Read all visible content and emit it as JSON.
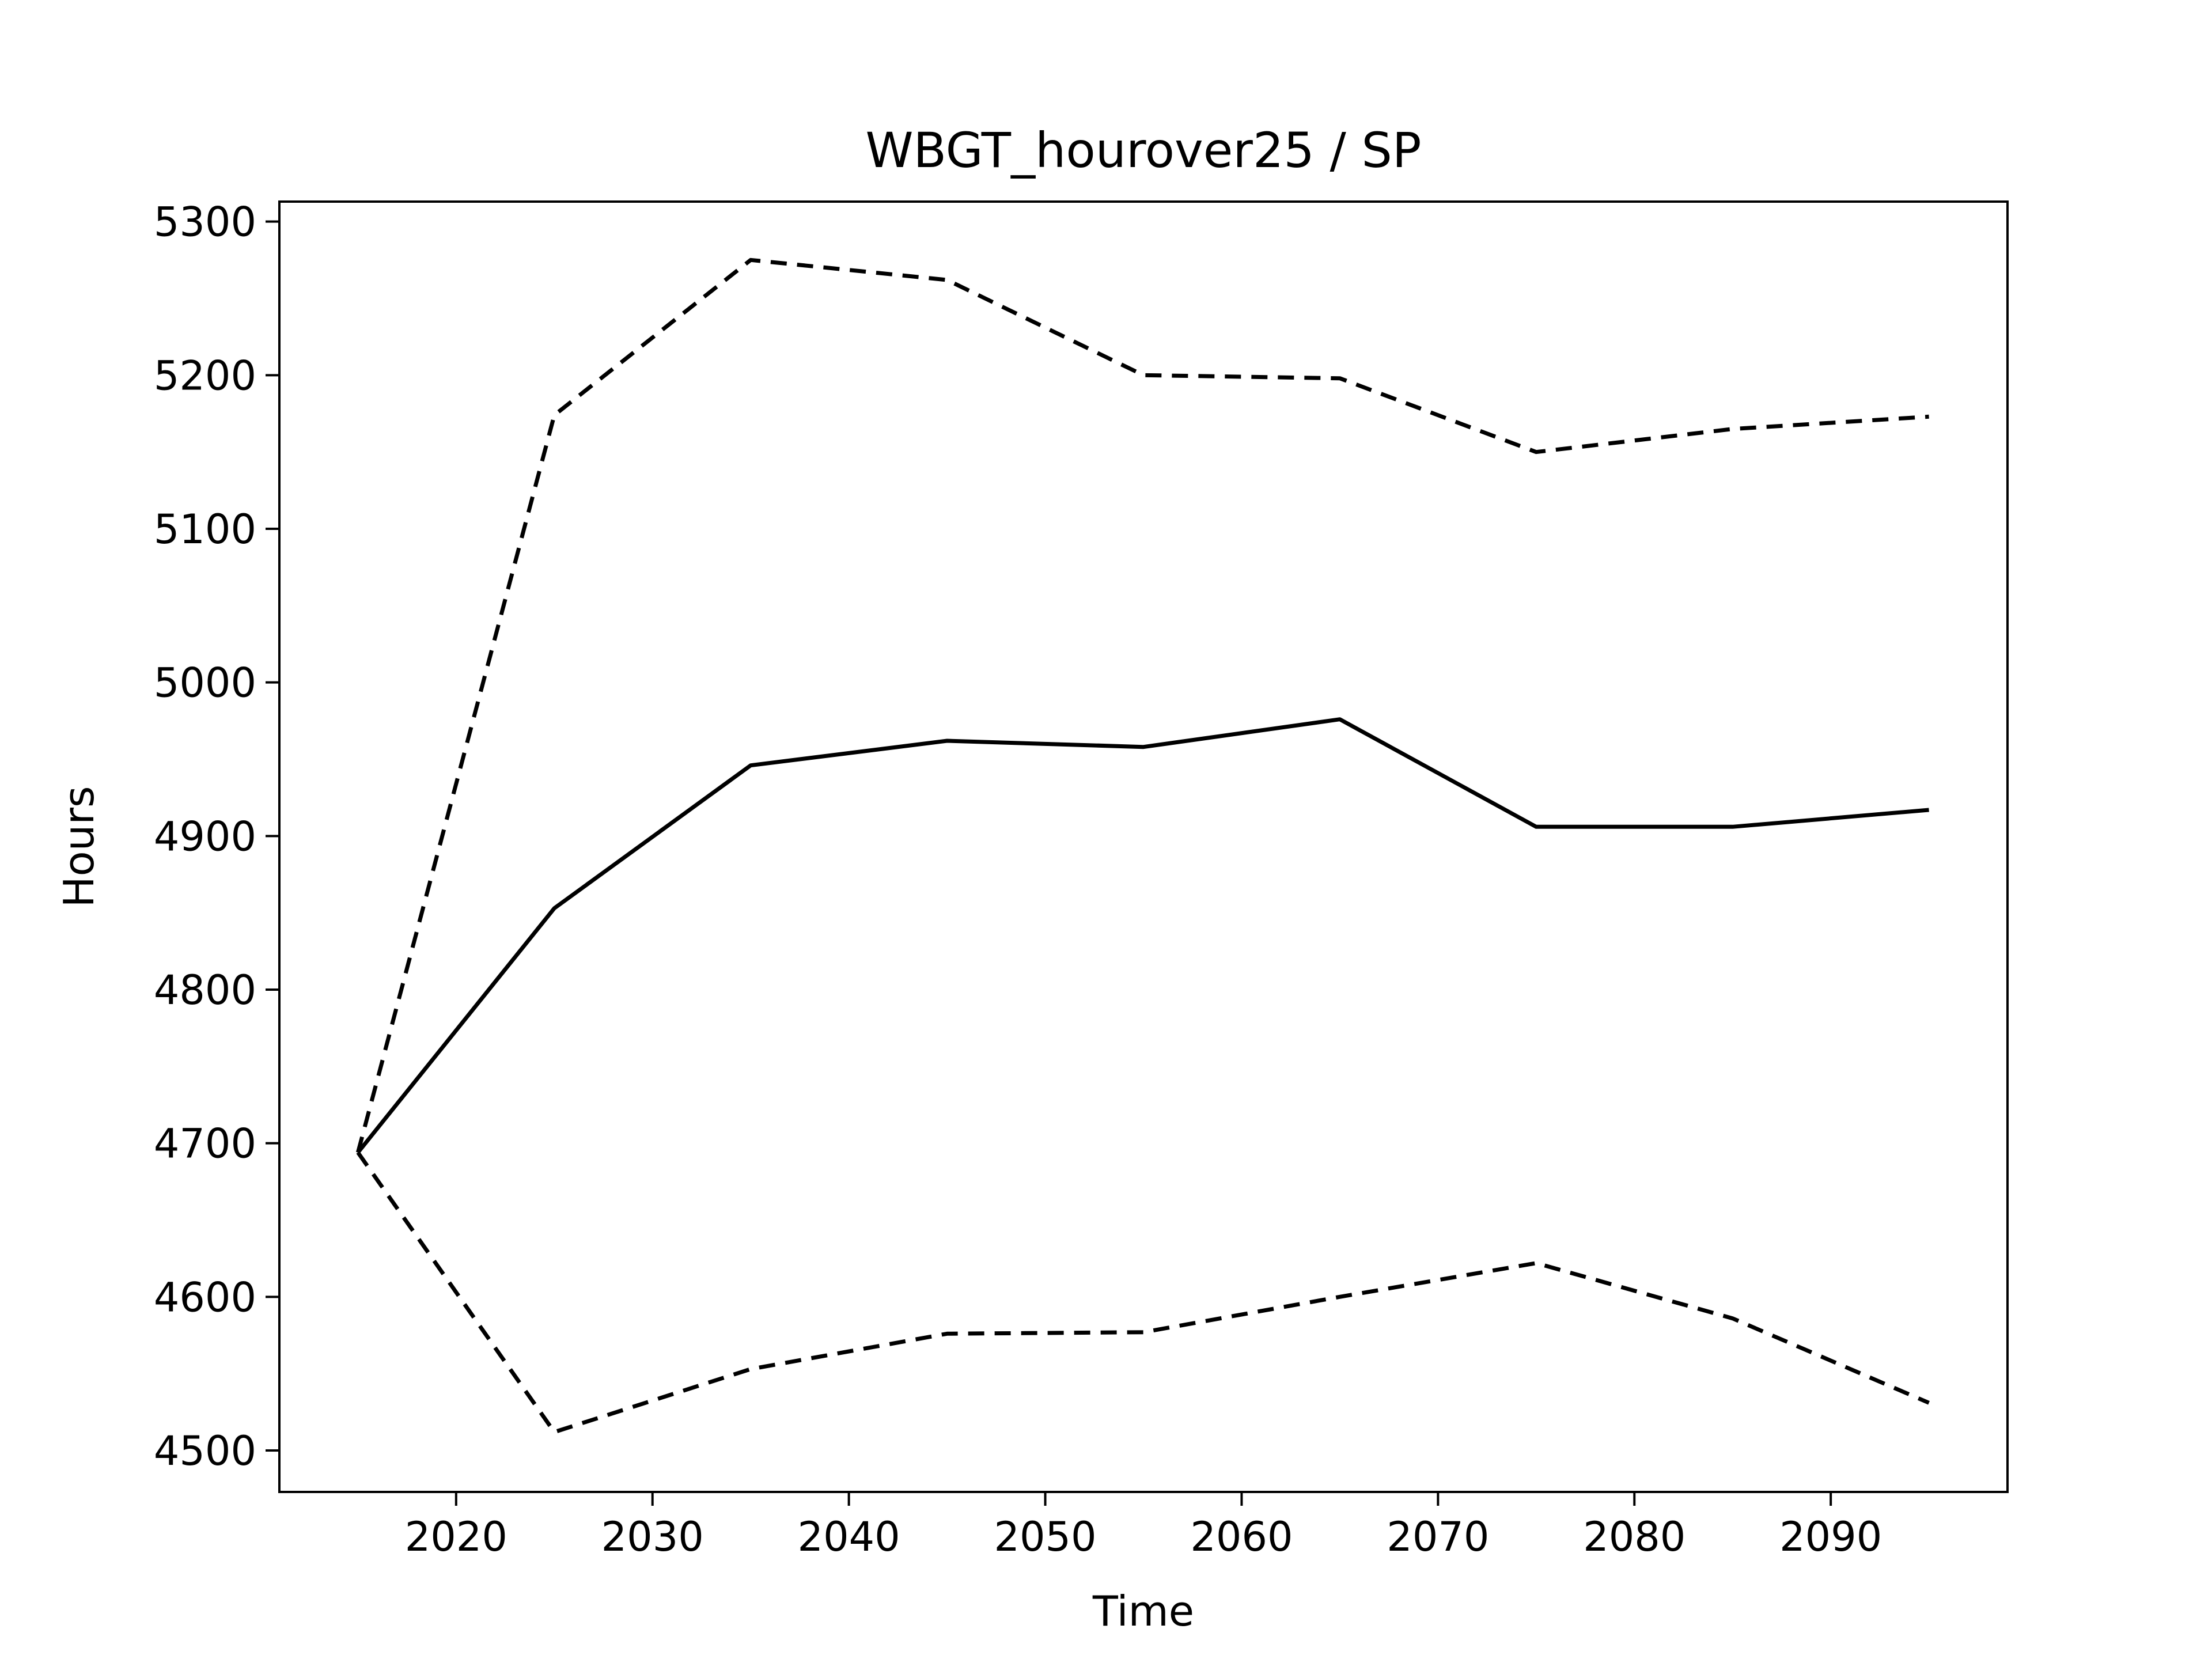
{
  "chart_data": {
    "type": "line",
    "title": "WBGT_hourover25 / SP",
    "xlabel": "Time",
    "ylabel": "Hours",
    "xlim": [
      2011,
      2099
    ],
    "ylim": [
      4473,
      5313
    ],
    "xticks": [
      2020,
      2030,
      2040,
      2050,
      2060,
      2070,
      2080,
      2090
    ],
    "yticks": [
      4500,
      4600,
      4700,
      4800,
      4900,
      5000,
      5100,
      5200,
      5300
    ],
    "grid": false,
    "x": [
      2015,
      2025,
      2035,
      2045,
      2055,
      2065,
      2075,
      2085,
      2095
    ],
    "series": [
      {
        "style": "solid",
        "color": "#000000",
        "values": [
          4694,
          4853,
          4946,
          4962,
          4958,
          4976,
          4906,
          4906,
          4917
        ]
      },
      {
        "style": "dashed",
        "color": "#000000",
        "values": [
          4694,
          5174,
          5275,
          5262,
          5200,
          5198,
          5150,
          5165,
          5173
        ]
      },
      {
        "style": "dashed",
        "color": "#000000",
        "values": [
          4694,
          4512,
          4553,
          4576,
          4577,
          4600,
          4622,
          4586,
          4531
        ]
      }
    ]
  }
}
